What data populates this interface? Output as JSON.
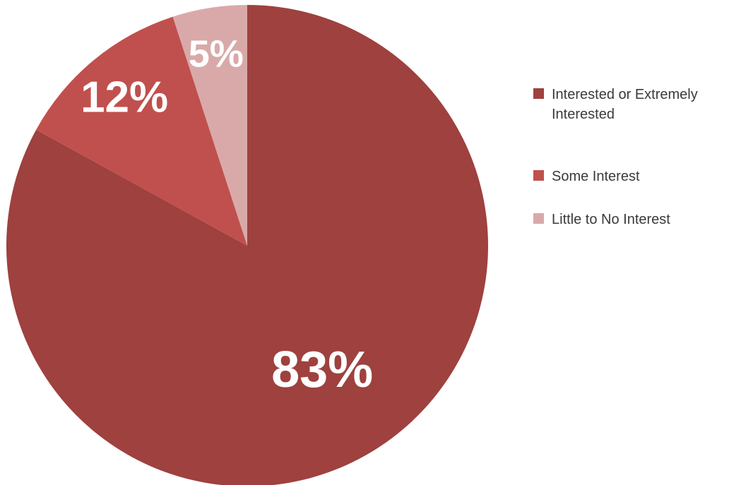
{
  "chart_data": {
    "type": "pie",
    "slices": [
      {
        "label": "Interested or Extremely Interested",
        "value": 83,
        "display": "83%",
        "color": "#9e413f"
      },
      {
        "label": "Some Interest",
        "value": 12,
        "display": "12%",
        "color": "#c0504d"
      },
      {
        "label": "Little to No Interest",
        "value": 5,
        "display": "5%",
        "color": "#d9a9a9"
      }
    ],
    "start": "12 o'clock",
    "direction": "clockwise",
    "legend_placement": "right",
    "title": ""
  },
  "legend": {
    "items": [
      {
        "label": "Interested or Extremely Interested",
        "color": "#9e413f"
      },
      {
        "label": "Some Interest",
        "color": "#c0504d"
      },
      {
        "label": "Little to No Interest",
        "color": "#d9a9a9"
      }
    ]
  }
}
